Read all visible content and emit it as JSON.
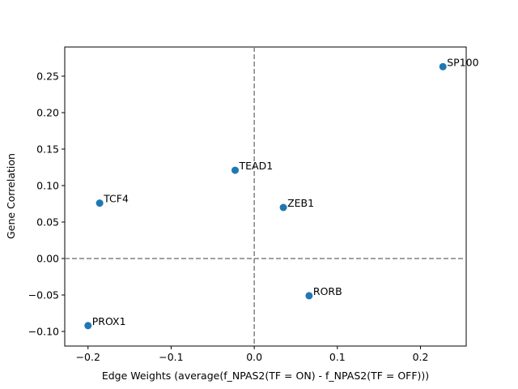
{
  "chart_data": {
    "type": "scatter",
    "title": "",
    "xlabel": "Edge Weights (average(f_NPAS2(TF = ON) - f_NPAS2(TF = OFF)))",
    "ylabel": "Gene Correlation",
    "xlim": [
      -0.228,
      0.255
    ],
    "ylim": [
      -0.12,
      0.29
    ],
    "xticks": [
      -0.2,
      -0.1,
      0.0,
      0.1,
      0.2
    ],
    "xtick_labels": [
      "−0.2",
      "−0.1",
      "0.0",
      "0.1",
      "0.2"
    ],
    "yticks": [
      -0.1,
      -0.05,
      0.0,
      0.05,
      0.1,
      0.15,
      0.2,
      0.25
    ],
    "ytick_labels": [
      "−0.10",
      "−0.05",
      "0.00",
      "0.05",
      "0.10",
      "0.15",
      "0.20",
      "0.25"
    ],
    "reference_lines": {
      "x": 0,
      "y": 0,
      "style": "dashed",
      "color": "#808080"
    },
    "marker_color": "#1f77b4",
    "grid": false,
    "points": [
      {
        "label": "SP100",
        "x": 0.227,
        "y": 0.263
      },
      {
        "label": "TEAD1",
        "x": -0.023,
        "y": 0.121
      },
      {
        "label": "TCF4",
        "x": -0.186,
        "y": 0.076
      },
      {
        "label": "ZEB1",
        "x": 0.035,
        "y": 0.07
      },
      {
        "label": "RORB",
        "x": 0.066,
        "y": -0.051
      },
      {
        "label": "PROX1",
        "x": -0.2,
        "y": -0.092
      }
    ]
  }
}
